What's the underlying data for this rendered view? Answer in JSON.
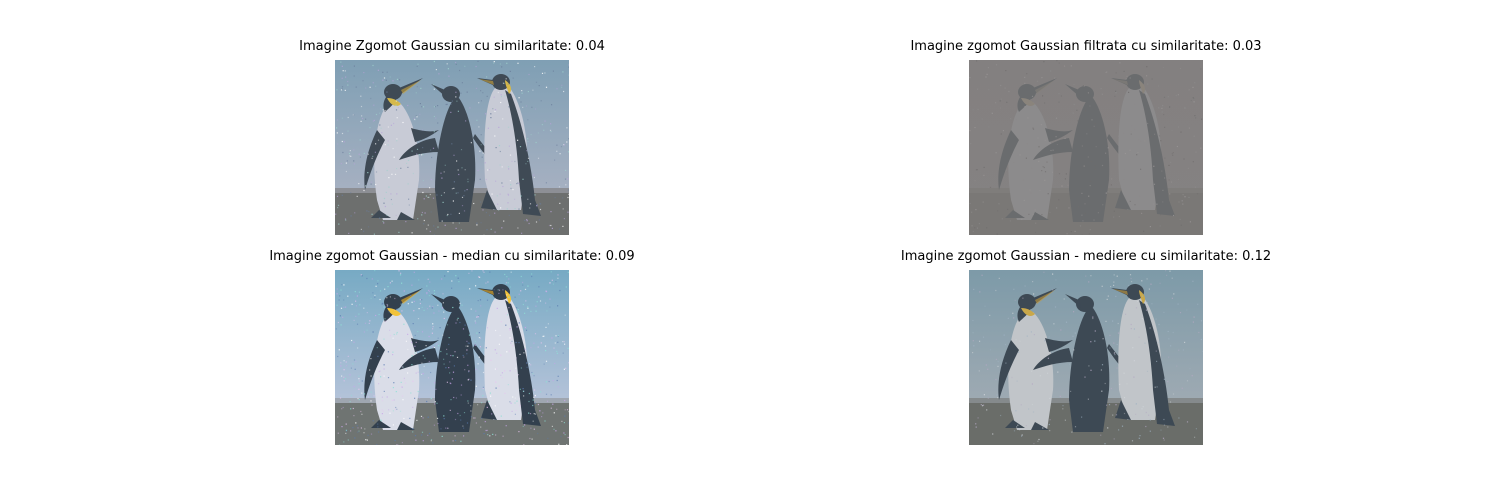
{
  "figure": {
    "panels": [
      {
        "id": "p1",
        "title": "Imagine Zgomot Gaussian cu similaritate: 0.04",
        "variant": "noisy",
        "similarity": 0.04
      },
      {
        "id": "p2",
        "title": "Imagine zgomot Gaussian filtrata cu similaritate: 0.03",
        "variant": "filtered-gray",
        "similarity": 0.03
      },
      {
        "id": "p3",
        "title": "Imagine zgomot Gaussian - median cu similaritate: 0.09",
        "variant": "median",
        "similarity": 0.09
      },
      {
        "id": "p4",
        "title": "Imagine zgomot Gaussian - mediere cu similaritate: 0.12",
        "variant": "mean",
        "similarity": 0.12
      }
    ]
  }
}
